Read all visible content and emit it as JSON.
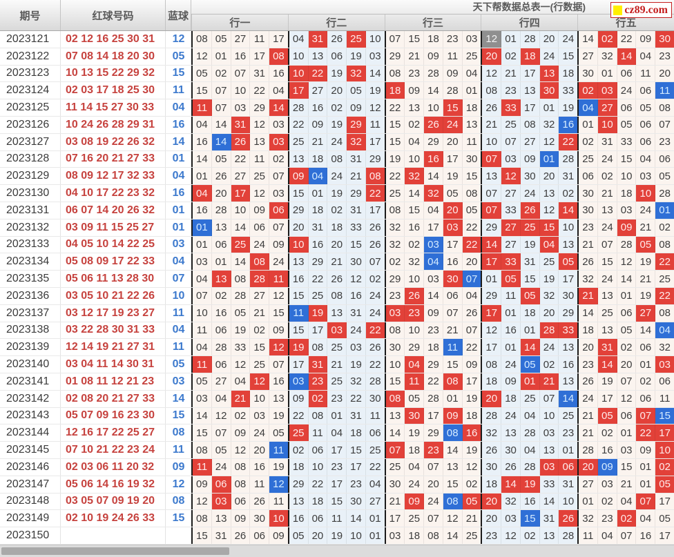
{
  "title": "天下帮数据总表一(行数据)",
  "logo_text": "cz89.com",
  "columns": {
    "period": "期号",
    "reds": "红球号码",
    "blue": "蓝球"
  },
  "groups": [
    "行一",
    "行二",
    "行三",
    "行四",
    "行五"
  ],
  "colors": {
    "red_mark": "#e24139",
    "blue_mark": "#2f6fd6",
    "gray_mark": "#8f8f8f",
    "red_text": "#c6423e",
    "blue_text": "#3c79cd",
    "tint_warm": "#fbf4ef",
    "tint_cool": "#e9f1f8"
  },
  "rows": [
    {
      "period": "2023121",
      "reds": "02 12 16 25 30 31",
      "blue": "12",
      "cells": "08 05 27 11 17 04 31 26 25 10 07 15 18 23 03 12 01 28 20 24 14 02 22 09 30",
      "marks": {
        "6": "r",
        "8": "r",
        "15": "g",
        "21": "r",
        "24": "r"
      }
    },
    {
      "period": "2023122",
      "reds": "07 08 14 18 20 30",
      "blue": "05",
      "cells": "12 01 16 17 08 10 13 06 19 03 29 21 09 11 25 20 02 18 24 15 27 32 14 04 23",
      "marks": {
        "4": "r",
        "15": "r",
        "17": "r",
        "22": "r"
      }
    },
    {
      "period": "2023123",
      "reds": "10 13 15 22 29 32",
      "blue": "15",
      "cells": "05 02 07 31 16 10 22 19 32 14 08 23 28 09 04 12 21 17 13 18 30 01 06 11 20",
      "marks": {
        "5": "r",
        "6": "r",
        "8": "r",
        "18": "r"
      }
    },
    {
      "period": "2023124",
      "reds": "02 03 17 18 25 30",
      "blue": "11",
      "cells": "15 07 10 22 04 17 27 20 05 19 18 09 14 28 01 08 23 13 30 33 02 03 24 06 11",
      "marks": {
        "5": "r",
        "10": "r",
        "18": "r",
        "20": "r",
        "21": "r",
        "24": "b"
      }
    },
    {
      "period": "2023125",
      "reds": "11 14 15 27 30 33",
      "blue": "04",
      "cells": "11 07 03 29 14 28 16 02 09 12 22 13 10 15 18 26 33 17 01 19 04 27 06 05 08",
      "marks": {
        "0": "r",
        "4": "r",
        "13": "r",
        "16": "r",
        "20": "b",
        "21": "r"
      }
    },
    {
      "period": "2023126",
      "reds": "10 24 26 28 29 31",
      "blue": "16",
      "cells": "04 14 31 12 03 22 09 19 29 11 15 02 26 24 13 21 25 08 32 16 01 10 05 06 07",
      "marks": {
        "2": "r",
        "8": "r",
        "12": "r",
        "13": "r",
        "19": "b",
        "21": "r"
      }
    },
    {
      "period": "2023127",
      "reds": "03 08 19 22 26 32",
      "blue": "14",
      "cells": "16 14 26 13 03 25 21 24 32 17 15 04 29 20 11 10 07 27 12 22 02 31 33 06 23",
      "marks": {
        "1": "b",
        "2": "r",
        "4": "r",
        "8": "r",
        "19": "r"
      }
    },
    {
      "period": "2023128",
      "reds": "07 16 20 21 27 33",
      "blue": "01",
      "cells": "14 05 22 11 02 13 18 08 31 29 19 10 16 17 30 07 03 09 01 28 25 24 15 04 06",
      "marks": {
        "12": "r",
        "15": "r",
        "18": "b"
      }
    },
    {
      "period": "2023129",
      "reds": "08 09 12 17 32 33",
      "blue": "04",
      "cells": "01 26 27 25 07 09 04 24 21 08 22 32 14 19 15 13 12 30 20 31 06 02 10 03 05",
      "marks": {
        "5": "r",
        "6": "b",
        "9": "r",
        "11": "r",
        "16": "r"
      }
    },
    {
      "period": "2023130",
      "reds": "04 10 17 22 23 32",
      "blue": "16",
      "cells": "04 20 17 12 03 15 01 19 29 22 25 14 32 05 08 07 27 24 13 02 30 21 18 10 28",
      "marks": {
        "0": "r",
        "2": "r",
        "9": "r",
        "12": "r",
        "23": "r"
      }
    },
    {
      "period": "2023131",
      "reds": "06 07 14 20 26 32",
      "blue": "01",
      "cells": "16 28 10 09 06 29 18 02 31 17 08 15 04 20 05 07 33 26 12 14 30 13 03 24 01",
      "marks": {
        "4": "r",
        "13": "r",
        "15": "r",
        "17": "r",
        "19": "r",
        "24": "b"
      }
    },
    {
      "period": "2023132",
      "reds": "03 09 11 15 25 27",
      "blue": "01",
      "cells": "01 13 14 06 07 20 31 18 33 26 32 16 17 03 22 29 27 25 15 10 23 24 09 21 02",
      "marks": {
        "0": "b",
        "13": "r",
        "16": "r",
        "17": "r",
        "18": "r",
        "22": "r"
      }
    },
    {
      "period": "2023133",
      "reds": "04 05 10 14 22 25",
      "blue": "03",
      "cells": "01 06 25 24 09 10 16 20 15 26 32 02 03 17 22 14 27 19 04 13 21 07 28 05 08",
      "marks": {
        "2": "r",
        "5": "r",
        "12": "b",
        "14": "r",
        "15": "r",
        "18": "r",
        "23": "r"
      }
    },
    {
      "period": "2023134",
      "reds": "05 08 09 17 22 33",
      "blue": "04",
      "cells": "03 01 14 08 24 13 29 21 30 07 02 32 04 16 20 17 33 31 25 05 26 15 12 19 22",
      "marks": {
        "3": "r",
        "12": "b",
        "15": "r",
        "16": "r",
        "19": "r",
        "24": "r"
      }
    },
    {
      "period": "2023135",
      "reds": "05 06 11 13 28 30",
      "blue": "07",
      "cells": "04 13 08 28 11 16 22 26 12 02 29 10 03 30 07 01 05 15 19 17 32 24 14 21 25",
      "marks": {
        "1": "r",
        "3": "r",
        "4": "r",
        "13": "r",
        "14": "b",
        "16": "r"
      }
    },
    {
      "period": "2023136",
      "reds": "03 05 10 21 22 26",
      "blue": "10",
      "cells": "07 02 28 27 12 15 25 08 16 24 23 26 14 06 04 29 11 05 32 30 21 13 01 19 22",
      "marks": {
        "11": "r",
        "17": "r",
        "20": "r",
        "24": "r"
      }
    },
    {
      "period": "2023137",
      "reds": "03 12 17 19 23 27",
      "blue": "11",
      "cells": "10 16 05 21 15 11 19 13 31 24 03 23 09 07 26 17 01 18 20 29 14 25 06 27 08",
      "marks": {
        "5": "b",
        "6": "r",
        "10": "r",
        "11": "r",
        "15": "r",
        "23": "r"
      }
    },
    {
      "period": "2023138",
      "reds": "03 22 28 30 31 33",
      "blue": "04",
      "cells": "11 06 19 02 09 15 17 03 24 22 08 10 23 21 07 12 16 01 28 33 18 13 05 14 04",
      "marks": {
        "7": "r",
        "9": "r",
        "18": "r",
        "19": "r",
        "24": "b"
      }
    },
    {
      "period": "2023139",
      "reds": "12 14 19 21 27 31",
      "blue": "11",
      "cells": "04 28 33 15 12 19 08 25 03 26 30 29 18 11 22 17 01 14 24 13 20 31 02 06 32",
      "marks": {
        "4": "r",
        "5": "r",
        "13": "b",
        "17": "r",
        "21": "r"
      }
    },
    {
      "period": "2023140",
      "reds": "03 04 11 14 30 31",
      "blue": "05",
      "cells": "11 06 12 25 07 17 31 21 19 22 10 04 29 15 09 08 24 05 02 16 23 14 20 01 03",
      "marks": {
        "0": "r",
        "6": "r",
        "11": "r",
        "17": "b",
        "21": "r",
        "24": "r"
      }
    },
    {
      "period": "2023141",
      "reds": "01 08 11 12 21 23",
      "blue": "03",
      "cells": "05 27 04 12 16 03 23 25 32 28 15 11 22 08 17 18 09 01 21 13 26 19 07 02 06",
      "marks": {
        "3": "r",
        "5": "b",
        "6": "r",
        "11": "r",
        "13": "r",
        "17": "r",
        "18": "r"
      }
    },
    {
      "period": "2023142",
      "reds": "02 08 20 21 27 33",
      "blue": "14",
      "cells": "03 04 21 10 13 09 02 23 22 30 08 05 28 01 19 20 18 25 07 14 24 17 12 06 11",
      "marks": {
        "2": "r",
        "6": "r",
        "10": "r",
        "15": "r",
        "19": "b"
      }
    },
    {
      "period": "2023143",
      "reds": "05 07 09 16 23 30",
      "blue": "15",
      "cells": "14 12 02 03 19 22 08 01 31 11 13 30 17 09 18 28 24 04 10 25 21 05 06 07 15",
      "marks": {
        "11": "r",
        "13": "r",
        "21": "r",
        "23": "r",
        "24": "b"
      }
    },
    {
      "period": "2023144",
      "reds": "12 16 17 22 25 27",
      "blue": "08",
      "cells": "15 07 09 24 05 25 11 04 18 06 14 19 29 08 16 32 13 28 03 23 21 02 01 22 17",
      "marks": {
        "5": "r",
        "13": "b",
        "14": "r",
        "23": "r",
        "24": "r"
      }
    },
    {
      "period": "2023145",
      "reds": "07 10 21 22 23 24",
      "blue": "11",
      "cells": "08 05 12 20 11 02 06 17 15 25 07 18 23 14 19 26 30 04 13 01 28 16 03 09 10",
      "marks": {
        "4": "b",
        "10": "r",
        "12": "r",
        "24": "r"
      }
    },
    {
      "period": "2023146",
      "reds": "02 03 06 11 20 32",
      "blue": "09",
      "cells": "11 24 08 16 19 18 10 23 17 22 25 04 07 13 12 30 26 28 03 06 20 09 15 01 02",
      "marks": {
        "0": "r",
        "18": "r",
        "19": "r",
        "20": "r",
        "21": "b",
        "24": "r"
      }
    },
    {
      "period": "2023147",
      "reds": "05 06 14 16 19 32",
      "blue": "12",
      "cells": "09 06 08 11 12 29 22 17 23 04 30 24 20 15 02 18 14 19 33 31 27 03 21 01 05",
      "marks": {
        "1": "r",
        "4": "b",
        "16": "r",
        "17": "r",
        "24": "r"
      }
    },
    {
      "period": "2023148",
      "reds": "03 05 07 09 19 20",
      "blue": "08",
      "cells": "12 03 06 26 11 13 18 15 30 27 21 09 24 08 05 20 32 16 14 10 01 02 04 07 17",
      "marks": {
        "1": "r",
        "11": "r",
        "13": "b",
        "14": "r",
        "15": "r",
        "23": "r"
      }
    },
    {
      "period": "2023149",
      "reds": "02 10 19 24 26 33",
      "blue": "15",
      "cells": "08 13 09 30 10 16 06 11 14 01 17 25 07 12 21 20 03 15 31 26 32 23 02 04 05",
      "marks": {
        "4": "r",
        "17": "b",
        "19": "r",
        "22": "r"
      }
    },
    {
      "period": "2023150",
      "reds": "",
      "blue": "",
      "cells": "15 31 26 06 09 05 20 19 10 01 03 18 08 14 25 23 12 02 13 28 11 04 07 16 17",
      "marks": {}
    }
  ]
}
